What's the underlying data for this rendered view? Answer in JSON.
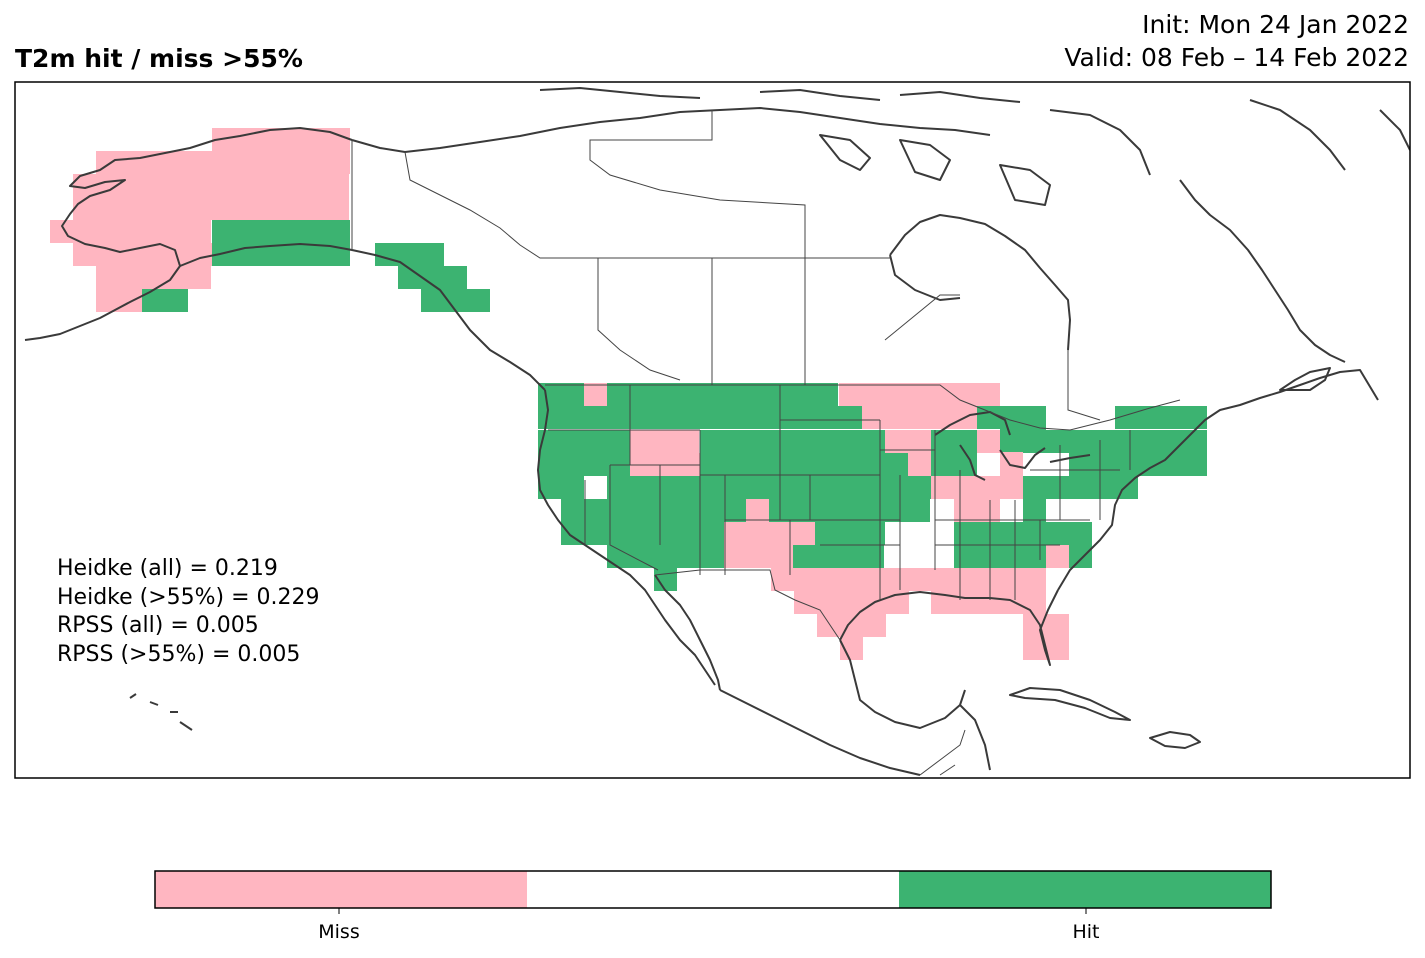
{
  "header": {
    "title": "T2m hit / miss  >55%",
    "init": "Init: Mon 24 Jan 2022",
    "valid": "Valid: 08 Feb – 14 Feb 2022"
  },
  "stats": [
    "Heidke (all) = 0.219",
    "Heidke (>55%) = 0.229",
    "RPSS (all) = 0.005",
    "RPSS (>55%) = 0.005"
  ],
  "colorbar": {
    "categories": [
      "Miss",
      "",
      "Hit"
    ],
    "ticks": [
      "Miss",
      "Hit"
    ],
    "colors": {
      "miss": "#ffb6c1",
      "neutral": "#ffffff",
      "hit": "#3cb371"
    }
  },
  "colors": {
    "coastline": "#3a3a3a",
    "border": "#444444",
    "frame": "#000000"
  }
}
